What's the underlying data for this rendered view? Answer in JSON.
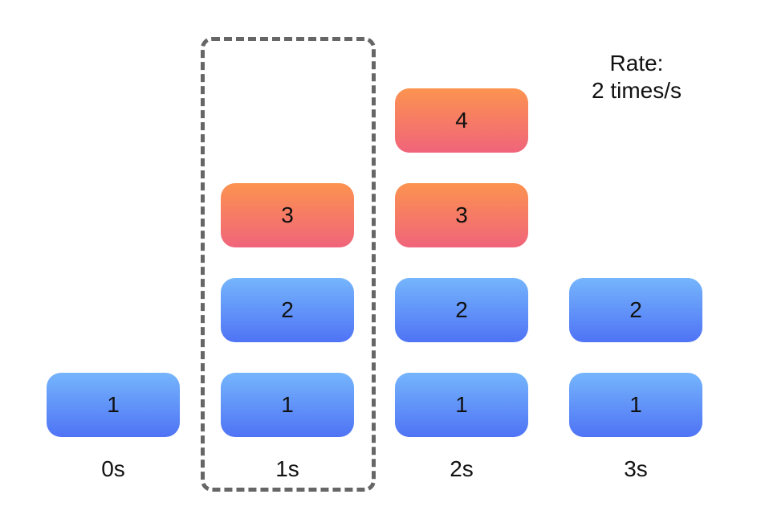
{
  "rate": {
    "line1": "Rate:",
    "line2": "2 times/s"
  },
  "columns": [
    {
      "time": "0s",
      "blocks": [
        {
          "label": "1",
          "status": "allowed"
        }
      ]
    },
    {
      "time": "1s",
      "highlighted": true,
      "blocks": [
        {
          "label": "1",
          "status": "allowed"
        },
        {
          "label": "2",
          "status": "allowed"
        },
        {
          "label": "3",
          "status": "rejected"
        }
      ]
    },
    {
      "time": "2s",
      "blocks": [
        {
          "label": "1",
          "status": "allowed"
        },
        {
          "label": "2",
          "status": "allowed"
        },
        {
          "label": "3",
          "status": "rejected"
        },
        {
          "label": "4",
          "status": "rejected"
        }
      ]
    },
    {
      "time": "3s",
      "blocks": [
        {
          "label": "1",
          "status": "allowed"
        },
        {
          "label": "2",
          "status": "allowed"
        }
      ]
    }
  ],
  "colors": {
    "allowed_top": "#75b5fc",
    "allowed_bottom": "#4f73f5",
    "rejected_top": "#fc9350",
    "rejected_bottom": "#f0647a",
    "window_border": "#666666"
  }
}
